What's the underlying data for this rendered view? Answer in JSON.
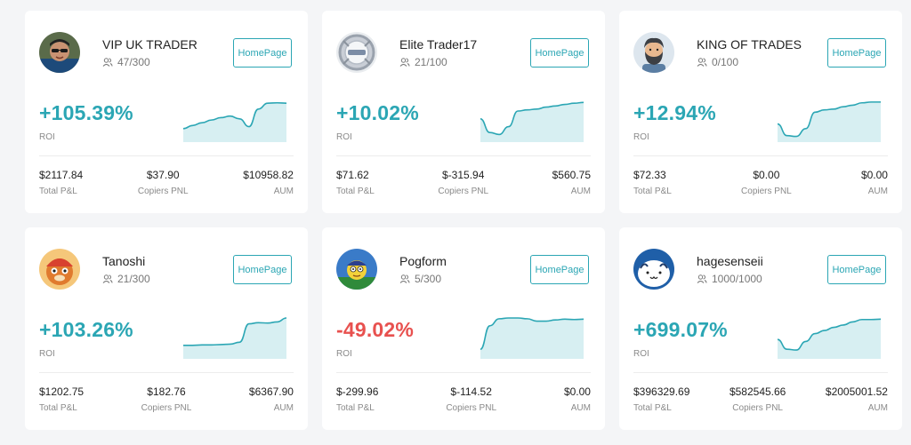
{
  "accent": "#2ba6b4",
  "negative": "#e8514f",
  "cards": [
    {
      "name": "VIP UK TRADER",
      "copiers": "47/300",
      "button": "HomePage",
      "avatar_icon": "trader-photo-avatar",
      "roi": "+105.39%",
      "roi_negative": false,
      "roi_label": "ROI",
      "pnl": "$2117.84",
      "pnl_label": "Total P&L",
      "copiers_pnl": "$37.90",
      "copiers_pnl_label": "Copiers PNL",
      "aum": "$10958.82",
      "aum_label": "AUM",
      "trend": [
        0.3,
        0.38,
        0.45,
        0.52,
        0.58,
        0.62,
        0.55,
        0.35,
        0.8,
        0.95,
        0.96,
        0.95
      ]
    },
    {
      "name": "Elite Trader17",
      "copiers": "21/100",
      "button": "HomePage",
      "avatar_icon": "silver-logo-avatar",
      "roi": "+10.02%",
      "roi_negative": false,
      "roi_label": "ROI",
      "pnl": "$71.62",
      "pnl_label": "Total P&L",
      "copiers_pnl": "$-315.94",
      "copiers_pnl_label": "Copiers PNL",
      "aum": "$560.75",
      "aum_label": "AUM",
      "trend": [
        0.55,
        0.2,
        0.15,
        0.35,
        0.75,
        0.78,
        0.8,
        0.85,
        0.88,
        0.92,
        0.95,
        0.97
      ]
    },
    {
      "name": "KING OF TRADES",
      "copiers": "0/100",
      "button": "HomePage",
      "avatar_icon": "bearded-man-avatar",
      "roi": "+12.94%",
      "roi_negative": false,
      "roi_label": "ROI",
      "pnl": "$72.33",
      "pnl_label": "Total P&L",
      "copiers_pnl": "$0.00",
      "copiers_pnl_label": "Copiers PNL",
      "aum": "$0.00",
      "aum_label": "AUM",
      "trend": [
        0.42,
        0.12,
        0.1,
        0.3,
        0.72,
        0.78,
        0.8,
        0.86,
        0.9,
        0.96,
        0.98,
        0.98
      ]
    },
    {
      "name": "Tanoshi",
      "copiers": "21/300",
      "button": "HomePage",
      "avatar_icon": "cartoon-animal-avatar",
      "roi": "+103.26%",
      "roi_negative": false,
      "roi_label": "ROI",
      "pnl": "$1202.75",
      "pnl_label": "Total P&L",
      "copiers_pnl": "$182.76",
      "copiers_pnl_label": "Copiers PNL",
      "aum": "$6367.90",
      "aum_label": "AUM",
      "trend": [
        0.3,
        0.3,
        0.31,
        0.31,
        0.32,
        0.33,
        0.38,
        0.85,
        0.88,
        0.87,
        0.9,
        1.0
      ]
    },
    {
      "name": "Pogform",
      "copiers": "5/300",
      "button": "HomePage",
      "avatar_icon": "cartoon-character-avatar",
      "roi": "-49.02%",
      "roi_negative": true,
      "roi_label": "ROI",
      "pnl": "$-299.96",
      "pnl_label": "Total P&L",
      "copiers_pnl": "$-114.52",
      "copiers_pnl_label": "Copiers PNL",
      "aum": "$0.00",
      "aum_label": "AUM",
      "trend": [
        0.2,
        0.8,
        0.98,
        1.0,
        1.0,
        0.98,
        0.92,
        0.92,
        0.95,
        0.97,
        0.96,
        0.97
      ]
    },
    {
      "name": "hagesenseii",
      "copiers": "1000/1000",
      "button": "HomePage",
      "avatar_icon": "kaomoji-face-avatar",
      "roi": "+699.07%",
      "roi_negative": false,
      "roi_label": "ROI",
      "pnl": "$396329.69",
      "pnl_label": "Total P&L",
      "copiers_pnl": "$582545.66",
      "copiers_pnl_label": "Copiers PNL",
      "aum": "$2005001.52",
      "aum_label": "AUM",
      "trend": [
        0.45,
        0.2,
        0.18,
        0.4,
        0.6,
        0.68,
        0.76,
        0.82,
        0.9,
        0.96,
        0.96,
        0.97
      ]
    }
  ]
}
